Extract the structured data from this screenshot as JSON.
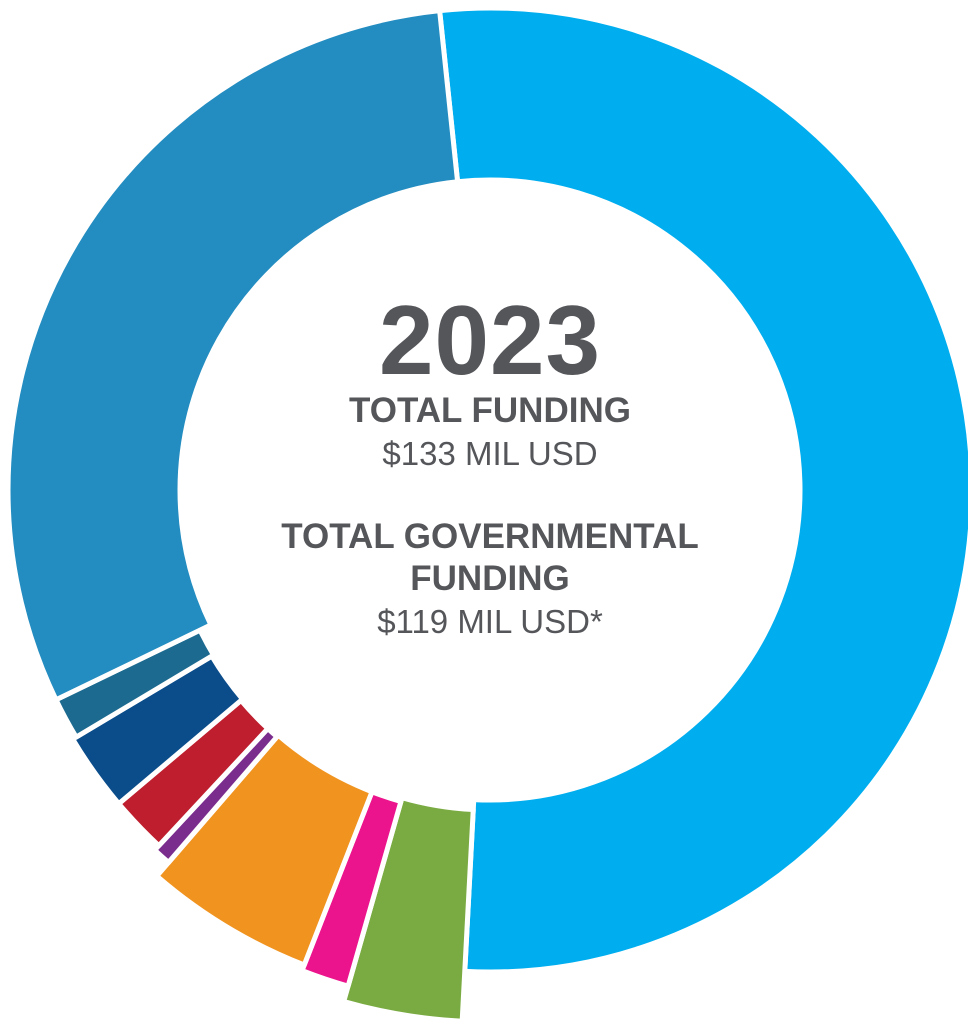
{
  "chart_data": {
    "type": "pie",
    "variant": "donut",
    "center": {
      "year": "2023",
      "total_funding_label": "TOTAL FUNDING",
      "total_funding_value": "$133 MIL USD",
      "governmental_label_line1": "TOTAL GOVERNMENTAL",
      "governmental_label_line2": "FUNDING",
      "governmental_value": "$119 MIL USD*"
    },
    "slices": [
      {
        "value": 52.5,
        "color": "#00aeef"
      },
      {
        "value": 3.6,
        "color": "#7aab42"
      },
      {
        "value": 1.5,
        "color": "#ec148c"
      },
      {
        "value": 5.4,
        "color": "#f0931f"
      },
      {
        "value": 0.6,
        "color": "#7b2d8e"
      },
      {
        "value": 1.9,
        "color": "#be1e2d"
      },
      {
        "value": 2.6,
        "color": "#0b4d8a"
      },
      {
        "value": 1.4,
        "color": "#1c6a90"
      },
      {
        "value": 30.5,
        "color": "#238cc0"
      }
    ]
  }
}
